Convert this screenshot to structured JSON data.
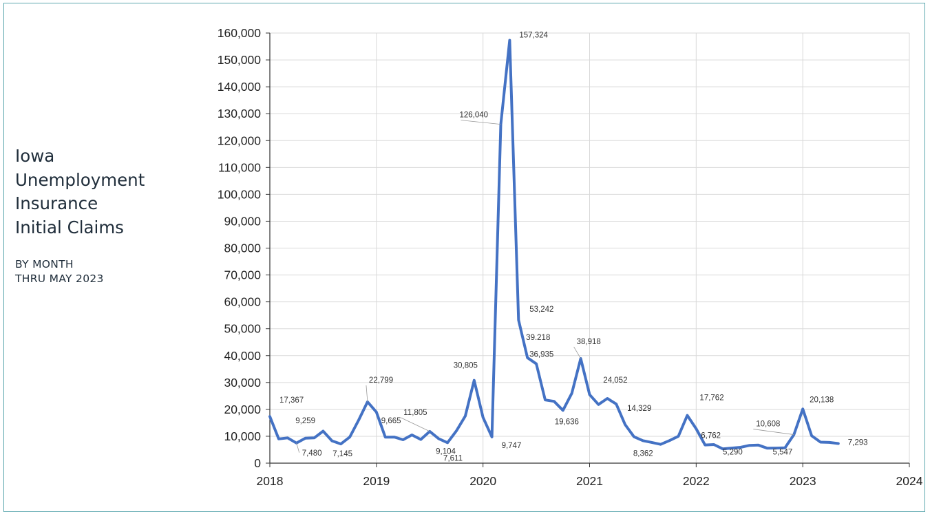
{
  "title_lines": [
    "Iowa",
    "Unemployment",
    "Insurance",
    "Initial Claims"
  ],
  "subtitle_lines": [
    "BY MONTH",
    "THRU MAY 2023"
  ],
  "colors": {
    "line": "#4472c4",
    "grid": "#d9d9d9",
    "frame": "#5aa6ad"
  },
  "chart_data": {
    "type": "line",
    "title": "",
    "xlabel": "",
    "ylabel": "",
    "ylim": [
      0,
      160000
    ],
    "xlim": [
      "2018",
      "2024"
    ],
    "grid": true,
    "y_ticks": [
      "0",
      "10,000",
      "20,000",
      "30,000",
      "40,000",
      "50,000",
      "60,000",
      "70,000",
      "80,000",
      "90,000",
      "100,000",
      "110,000",
      "120,000",
      "130,000",
      "140,000",
      "150,000",
      "160,000"
    ],
    "x_ticks": [
      "2018",
      "2019",
      "2020",
      "2021",
      "2022",
      "2023",
      "2024"
    ],
    "series": [
      {
        "x": [
          "2018-01",
          "2018-02",
          "2018-03",
          "2018-04",
          "2018-05",
          "2018-06",
          "2018-07",
          "2018-08",
          "2018-09",
          "2018-10",
          "2018-11",
          "2018-12",
          "2019-01",
          "2019-02",
          "2019-03",
          "2019-04",
          "2019-05",
          "2019-06",
          "2019-07",
          "2019-08",
          "2019-09",
          "2019-10",
          "2019-11",
          "2019-12",
          "2020-01",
          "2020-02",
          "2020-03",
          "2020-04",
          "2020-05",
          "2020-06",
          "2020-07",
          "2020-08",
          "2020-09",
          "2020-10",
          "2020-11",
          "2020-12",
          "2021-01",
          "2021-02",
          "2021-03",
          "2021-04",
          "2021-05",
          "2021-06",
          "2021-07",
          "2021-08",
          "2021-09",
          "2021-10",
          "2021-11",
          "2021-12",
          "2022-01",
          "2022-02",
          "2022-03",
          "2022-04",
          "2022-05",
          "2022-06",
          "2022-07",
          "2022-08",
          "2022-09",
          "2022-10",
          "2022-11",
          "2022-12",
          "2023-01",
          "2023-02",
          "2023-03",
          "2023-04",
          "2023-05"
        ],
        "values": [
          17367,
          9000,
          9400,
          7480,
          9259,
          9400,
          11900,
          8300,
          7145,
          9700,
          16000,
          22799,
          19000,
          9665,
          9700,
          8700,
          10500,
          8800,
          11805,
          9104,
          7611,
          12000,
          17500,
          30805,
          17000,
          9747,
          126040,
          157324,
          53242,
          39218,
          36935,
          23500,
          23000,
          19636,
          26000,
          38918,
          25500,
          21800,
          24052,
          22000,
          14329,
          9800,
          8362,
          7700,
          7000,
          8400,
          10000,
          17762,
          12800,
          6762,
          6900,
          5290,
          5600,
          5900,
          6600,
          6700,
          5547,
          5600,
          5700,
          10608,
          20138,
          10200,
          7800,
          7700,
          7293
        ]
      }
    ],
    "data_labels": [
      {
        "i": 0,
        "text": "17,367"
      },
      {
        "i": 3,
        "text": "7,480"
      },
      {
        "i": 4,
        "text": "9,259"
      },
      {
        "i": 8,
        "text": "7,145"
      },
      {
        "i": 11,
        "text": "22,799"
      },
      {
        "i": 13,
        "text": "9,665"
      },
      {
        "i": 18,
        "text": "11,805"
      },
      {
        "i": 19,
        "text": "9,104"
      },
      {
        "i": 20,
        "text": "7,611"
      },
      {
        "i": 23,
        "text": "30,805"
      },
      {
        "i": 25,
        "text": "9,747"
      },
      {
        "i": 26,
        "text": "126,040"
      },
      {
        "i": 27,
        "text": "157,324"
      },
      {
        "i": 28,
        "text": "53,242"
      },
      {
        "i": 29,
        "text": "39.218"
      },
      {
        "i": 30,
        "text": "36,935"
      },
      {
        "i": 33,
        "text": "19,636"
      },
      {
        "i": 35,
        "text": "38,918"
      },
      {
        "i": 38,
        "text": "24,052"
      },
      {
        "i": 40,
        "text": "14,329"
      },
      {
        "i": 42,
        "text": "8,362"
      },
      {
        "i": 47,
        "text": "17,762"
      },
      {
        "i": 49,
        "text": "6,762"
      },
      {
        "i": 51,
        "text": "5,290"
      },
      {
        "i": 56,
        "text": "5,547"
      },
      {
        "i": 59,
        "text": "10,608"
      },
      {
        "i": 60,
        "text": "20,138"
      },
      {
        "i": 64,
        "text": "7,293"
      }
    ]
  }
}
